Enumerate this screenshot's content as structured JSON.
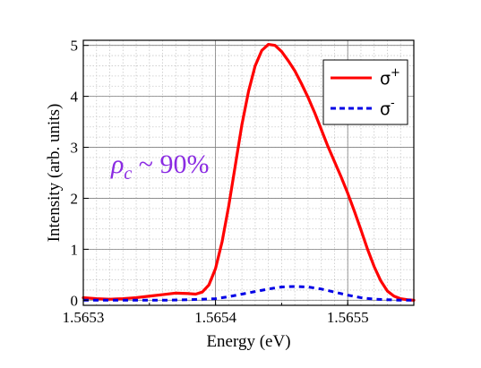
{
  "chart_data": {
    "type": "line",
    "title": "",
    "xlabel": "Energy (eV)",
    "ylabel": "Intensity (arb. units)",
    "xlim": [
      1.5653,
      1.56555
    ],
    "ylim": [
      -0.1,
      5.1
    ],
    "x_ticks": [
      1.5653,
      1.5654,
      1.5655
    ],
    "x_tick_labels": [
      "1.5653",
      "1.5654",
      "1.5655"
    ],
    "y_ticks": [
      0,
      1,
      2,
      3,
      4,
      5
    ],
    "y_tick_labels": [
      "0",
      "1",
      "2",
      "3",
      "4",
      "5"
    ],
    "grid": true,
    "legend_position": "top-right",
    "annotation": {
      "symbol": "ρ",
      "subscript": "c",
      "text": " ~ 90%",
      "color": "#8a2be2"
    },
    "series": [
      {
        "name": "σ",
        "superscript": "+",
        "color": "#ff0000",
        "style": "solid",
        "x": [
          1.5653,
          1.56531,
          1.56532,
          1.56533,
          1.56534,
          1.56535,
          1.56536,
          1.56537,
          1.56538,
          1.565385,
          1.56539,
          1.565395,
          1.5654,
          1.565405,
          1.56541,
          1.565415,
          1.56542,
          1.565425,
          1.56543,
          1.565435,
          1.56544,
          1.565445,
          1.56545,
          1.565455,
          1.56546,
          1.565465,
          1.56547,
          1.565475,
          1.56548,
          1.565485,
          1.56549,
          1.565495,
          1.5655,
          1.565505,
          1.56551,
          1.565515,
          1.56552,
          1.565525,
          1.56553,
          1.565535,
          1.56554,
          1.565545,
          1.56555
        ],
        "values": [
          0.05,
          0.03,
          0.02,
          0.03,
          0.05,
          0.08,
          0.11,
          0.14,
          0.13,
          0.12,
          0.16,
          0.3,
          0.62,
          1.15,
          1.85,
          2.65,
          3.45,
          4.1,
          4.6,
          4.9,
          5.02,
          5.0,
          4.88,
          4.7,
          4.5,
          4.25,
          3.98,
          3.68,
          3.35,
          3.02,
          2.72,
          2.42,
          2.1,
          1.75,
          1.38,
          1.0,
          0.66,
          0.38,
          0.18,
          0.08,
          0.03,
          0.01,
          0.0
        ]
      },
      {
        "name": "σ",
        "superscript": "-",
        "color": "#0000e6",
        "style": "dashed",
        "x": [
          1.5653,
          1.56532,
          1.56534,
          1.56536,
          1.56538,
          1.5654,
          1.56541,
          1.56542,
          1.56543,
          1.56544,
          1.56545,
          1.56546,
          1.56547,
          1.56548,
          1.56549,
          1.5655,
          1.56551,
          1.56552,
          1.56553,
          1.56554,
          1.56555
        ],
        "values": [
          0.0,
          0.0,
          0.0,
          0.0,
          0.01,
          0.03,
          0.07,
          0.12,
          0.17,
          0.22,
          0.26,
          0.27,
          0.26,
          0.22,
          0.16,
          0.1,
          0.05,
          0.02,
          0.01,
          0.0,
          0.0
        ]
      }
    ]
  }
}
